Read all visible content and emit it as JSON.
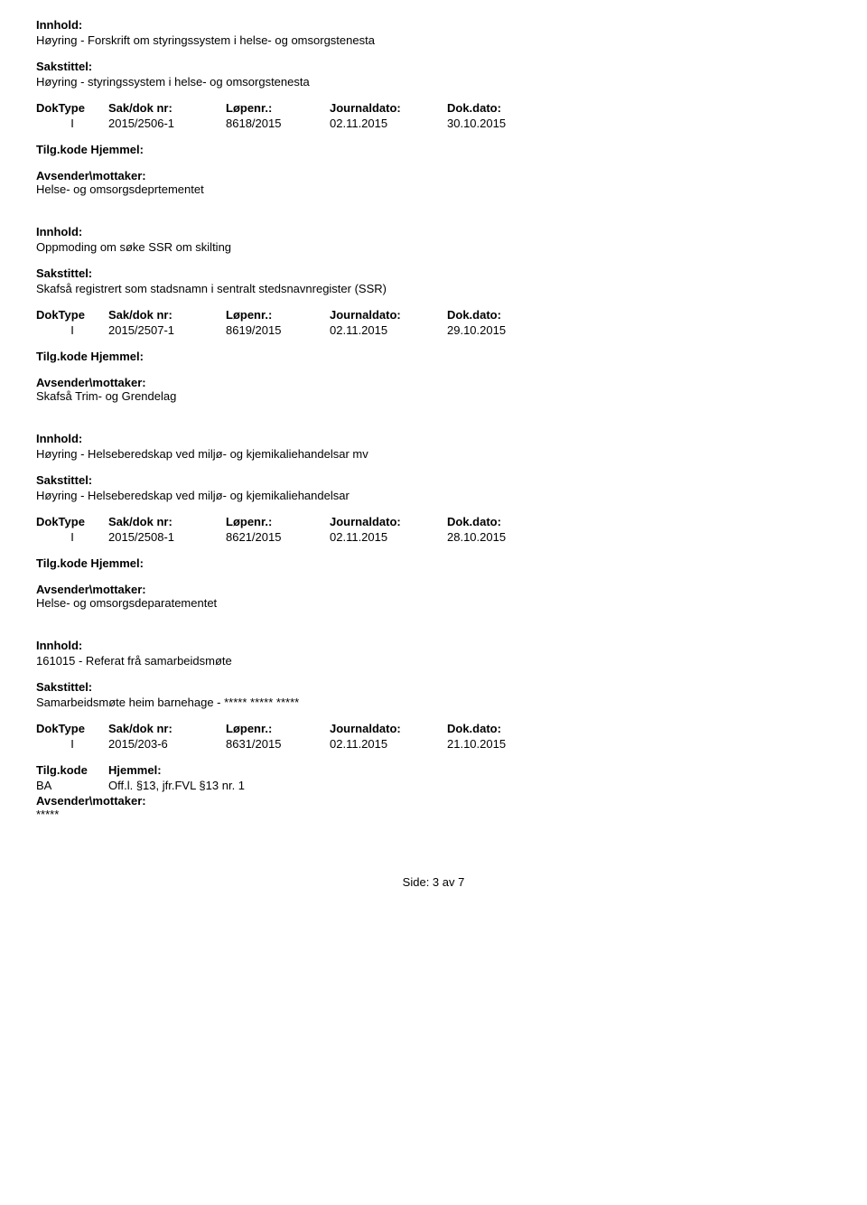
{
  "labels": {
    "innhold": "Innhold:",
    "sakstittel": "Sakstittel:",
    "doktype": "DokType",
    "sakdok": "Sak/dok nr:",
    "lopenr": "Løpenr.:",
    "journaldato": "Journaldato:",
    "dokdato": "Dok.dato:",
    "tilgkode": "Tilg.kode",
    "hjemmel": "Hjemmel:",
    "avsender": "Avsender\\mottaker:"
  },
  "records": [
    {
      "innhold": "Høyring - Forskrift om styringssystem i helse- og omsorgstenesta",
      "sakstittel": "Høyring - styringssystem i helse- og omsorgstenesta",
      "doktype": "I",
      "sakdok": "2015/2506-1",
      "lopenr": "8618/2015",
      "journaldato": "02.11.2015",
      "dokdato": "30.10.2015",
      "tilgcode": "",
      "hjemmel": "",
      "avsender": "Helse- og omsorgsdeprtementet"
    },
    {
      "innhold": "Oppmoding om søke SSR om skilting",
      "sakstittel": "Skafså registrert som stadsnamn i sentralt stedsnavnregister (SSR)",
      "doktype": "I",
      "sakdok": "2015/2507-1",
      "lopenr": "8619/2015",
      "journaldato": "02.11.2015",
      "dokdato": "29.10.2015",
      "tilgcode": "",
      "hjemmel": "",
      "avsender": "Skafså Trim- og Grendelag"
    },
    {
      "innhold": "Høyring - Helseberedskap ved miljø- og kjemikaliehandelsar mv",
      "sakstittel": "Høyring - Helseberedskap ved miljø- og kjemikaliehandelsar",
      "doktype": "I",
      "sakdok": "2015/2508-1",
      "lopenr": "8621/2015",
      "journaldato": "02.11.2015",
      "dokdato": "28.10.2015",
      "tilgcode": "",
      "hjemmel": "",
      "avsender": "Helse- og omsorgsdeparatementet"
    },
    {
      "innhold": "161015 - Referat frå samarbeidsmøte",
      "sakstittel": "Samarbeidsmøte heim barnehage - ***** ***** *****",
      "doktype": "I",
      "sakdok": "2015/203-6",
      "lopenr": "8631/2015",
      "journaldato": "02.11.2015",
      "dokdato": "21.10.2015",
      "tilgcode": "BA",
      "hjemmel": "Off.l. §13, jfr.FVL §13 nr. 1",
      "avsender": "*****"
    }
  ],
  "footer": "Side: 3 av 7"
}
